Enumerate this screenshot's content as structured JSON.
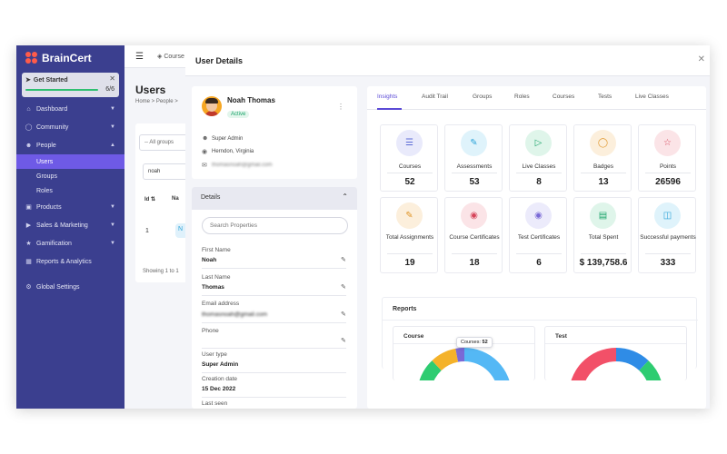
{
  "app": {
    "brand": "BrainCert"
  },
  "get_started": {
    "title": "Get Started",
    "progress": "6/6",
    "progress_fraction": 1.0
  },
  "sidebar": {
    "items": [
      {
        "label": "Dashboard",
        "icon": "home-icon",
        "chevron": true
      },
      {
        "label": "Community",
        "icon": "community-icon",
        "chevron": true
      },
      {
        "label": "People",
        "icon": "user-icon",
        "chevron": true
      },
      {
        "label": "Products",
        "icon": "box-icon",
        "chevron": true
      },
      {
        "label": "Sales & Marketing",
        "icon": "megaphone-icon",
        "chevron": true
      },
      {
        "label": "Gamification",
        "icon": "trophy-icon",
        "chevron": true
      },
      {
        "label": "Reports & Analytics",
        "icon": "chart-icon",
        "chevron": false
      },
      {
        "label": "Global Settings",
        "icon": "gear-icon",
        "chevron": false
      }
    ],
    "people_sub": [
      "Users",
      "Groups",
      "Roles"
    ],
    "active_sub": "Users"
  },
  "background": {
    "top_crumb": "Course",
    "title": "Users",
    "breadcrumb": "Home  >  People  >",
    "group_select": "-- All groups",
    "search_value": "noah",
    "col_id": "Id",
    "col_name": "Na",
    "row_id": "1",
    "row_badge": "N",
    "showing": "Showing 1 to 1"
  },
  "modal": {
    "title": "User Details",
    "profile": {
      "name": "Noah Thomas",
      "status": "Active",
      "role": "Super Admin",
      "location": "Herndon, Virginia",
      "email": "thomasnoah@gmail.com"
    },
    "details": {
      "title": "Details",
      "search_placeholder": "Search Properties",
      "fields": [
        {
          "label": "First Name",
          "value": "Noah",
          "editable": true,
          "blurred": false
        },
        {
          "label": "Last Name",
          "value": "Thomas",
          "editable": true,
          "blurred": false
        },
        {
          "label": "Email address",
          "value": "thomasnoah@gmail.com",
          "editable": true,
          "blurred": true
        },
        {
          "label": "Phone",
          "value": "",
          "editable": true,
          "blurred": false
        },
        {
          "label": "User type",
          "value": "Super Admin",
          "editable": false,
          "blurred": false
        },
        {
          "label": "Creation date",
          "value": "15 Dec 2022",
          "editable": false,
          "blurred": false
        },
        {
          "label": "Last seen",
          "value": "",
          "editable": false,
          "blurred": false
        }
      ]
    },
    "tabs": [
      "Insights",
      "Audit Trail",
      "Groups",
      "Roles",
      "Courses",
      "Tests",
      "Live Classes"
    ],
    "active_tab": "Insights",
    "stats": [
      {
        "label": "Courses",
        "value": "52",
        "icon": "layers-icon",
        "color": "#5b6ad6",
        "bg": "#e9eafb"
      },
      {
        "label": "Assessments",
        "value": "53",
        "icon": "pencil-icon",
        "color": "#2ba3d8",
        "bg": "#dff3fb"
      },
      {
        "label": "Live Classes",
        "value": "8",
        "icon": "video-icon",
        "color": "#1aa36a",
        "bg": "#dff5ea"
      },
      {
        "label": "Badges",
        "value": "13",
        "icon": "badge-icon",
        "color": "#e0962a",
        "bg": "#fcefdc"
      },
      {
        "label": "Points",
        "value": "26596",
        "icon": "star-icon",
        "color": "#d6455a",
        "bg": "#fbe4e7"
      },
      {
        "label": "Total Assignments",
        "value": "19",
        "icon": "pencil-icon",
        "color": "#e0962a",
        "bg": "#fcefdc"
      },
      {
        "label": "Course Certificates",
        "value": "18",
        "icon": "award-icon",
        "color": "#d6455a",
        "bg": "#fbe4e7"
      },
      {
        "label": "Test Certificates",
        "value": "6",
        "icon": "award-icon",
        "color": "#7a6ad6",
        "bg": "#ecebfb"
      },
      {
        "label": "Total Spent",
        "value": "$ 139,758.6",
        "icon": "money-icon",
        "color": "#1aa36a",
        "bg": "#dff5ea"
      },
      {
        "label": "Successful payments",
        "value": "333",
        "icon": "coins-icon",
        "color": "#2ba3d8",
        "bg": "#dff3fb"
      }
    ],
    "reports": {
      "title": "Reports",
      "charts": [
        {
          "title": "Course",
          "tooltip_label": "Courses:",
          "tooltip_value": "52",
          "segments": [
            {
              "fraction": 0.5,
              "color": "#54b8f5"
            },
            {
              "fraction": 0.38,
              "color": "#2ecc71"
            },
            {
              "fraction": 0.09,
              "color": "#f4b22a"
            },
            {
              "fraction": 0.03,
              "color": "#7a6ad6"
            }
          ]
        },
        {
          "title": "Test",
          "segments": [
            {
              "fraction": 0.12,
              "color": "#2f8ce6"
            },
            {
              "fraction": 0.1,
              "color": "#2ecc71"
            },
            {
              "fraction": 0.78,
              "color": "#f25068"
            }
          ]
        }
      ]
    }
  }
}
